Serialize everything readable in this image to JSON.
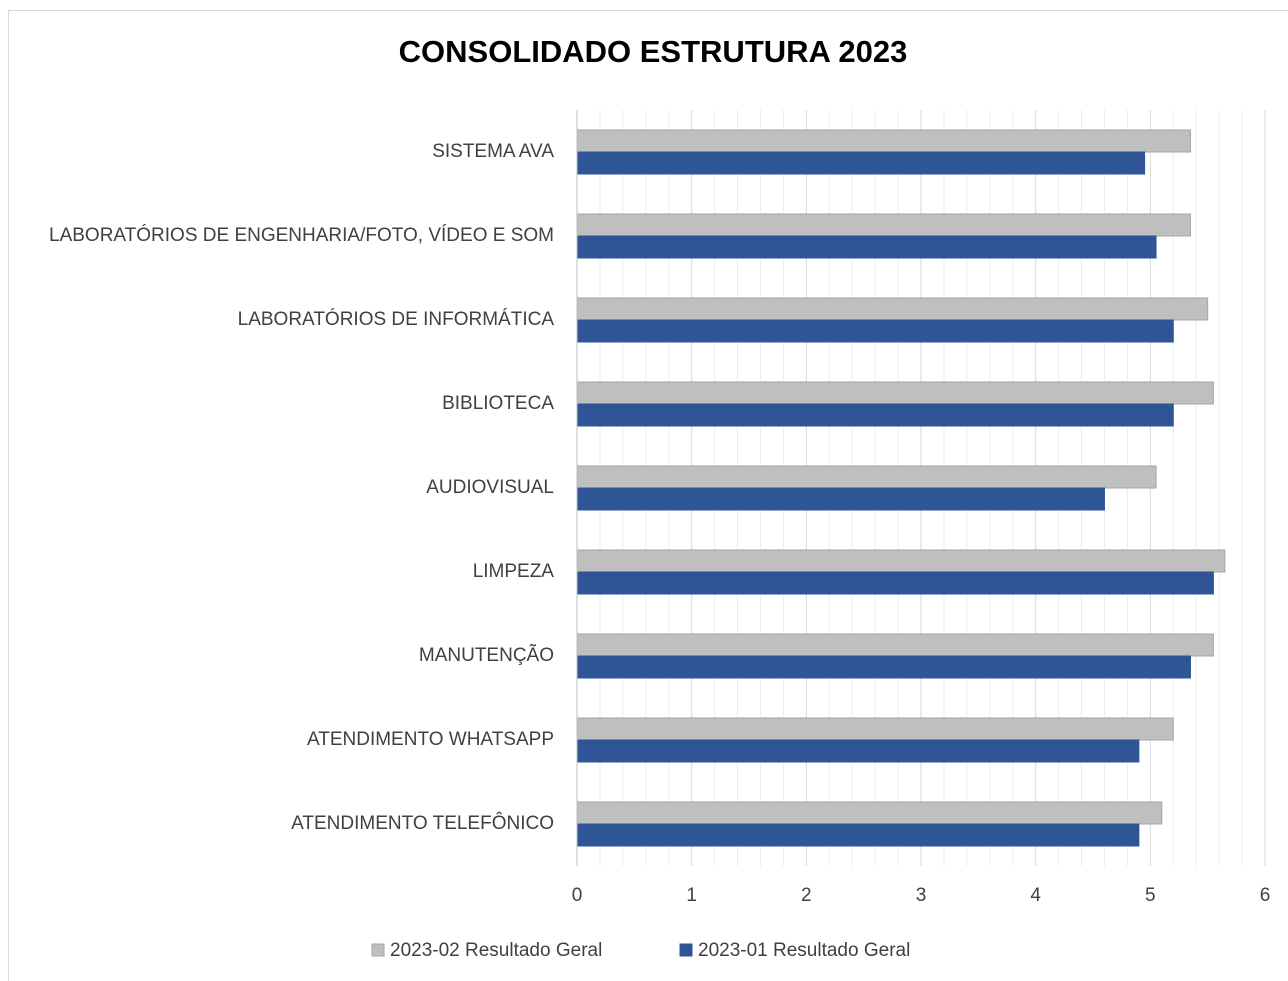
{
  "chart_data": {
    "type": "barh",
    "title": "CONSOLIDADO ESTRUTURA 2023",
    "categories": [
      "SISTEMA AVA",
      "LABORATÓRIOS DE ENGENHARIA/FOTO, VÍDEO E SOM",
      "LABORATÓRIOS DE INFORMÁTICA",
      "BIBLIOTECA",
      "AUDIOVISUAL",
      "LIMPEZA",
      "MANUTENÇÃO",
      "ATENDIMENTO WHATSAPP",
      "ATENDIMENTO TELEFÔNICO"
    ],
    "series": [
      {
        "name": "2023-02 Resultado Geral",
        "color": "#bfbfbf",
        "values": [
          5.35,
          5.35,
          5.5,
          5.55,
          5.05,
          5.65,
          5.55,
          5.2,
          5.1
        ]
      },
      {
        "name": "2023-01 Resultado Geral",
        "color": "#2f5597",
        "values": [
          4.95,
          5.05,
          5.2,
          5.2,
          4.6,
          5.55,
          5.35,
          4.9,
          4.9
        ]
      }
    ],
    "xlim": [
      0,
      6
    ],
    "xticks": [
      0,
      1,
      2,
      3,
      4,
      5,
      6
    ],
    "grid": true,
    "legend": "bottom"
  }
}
